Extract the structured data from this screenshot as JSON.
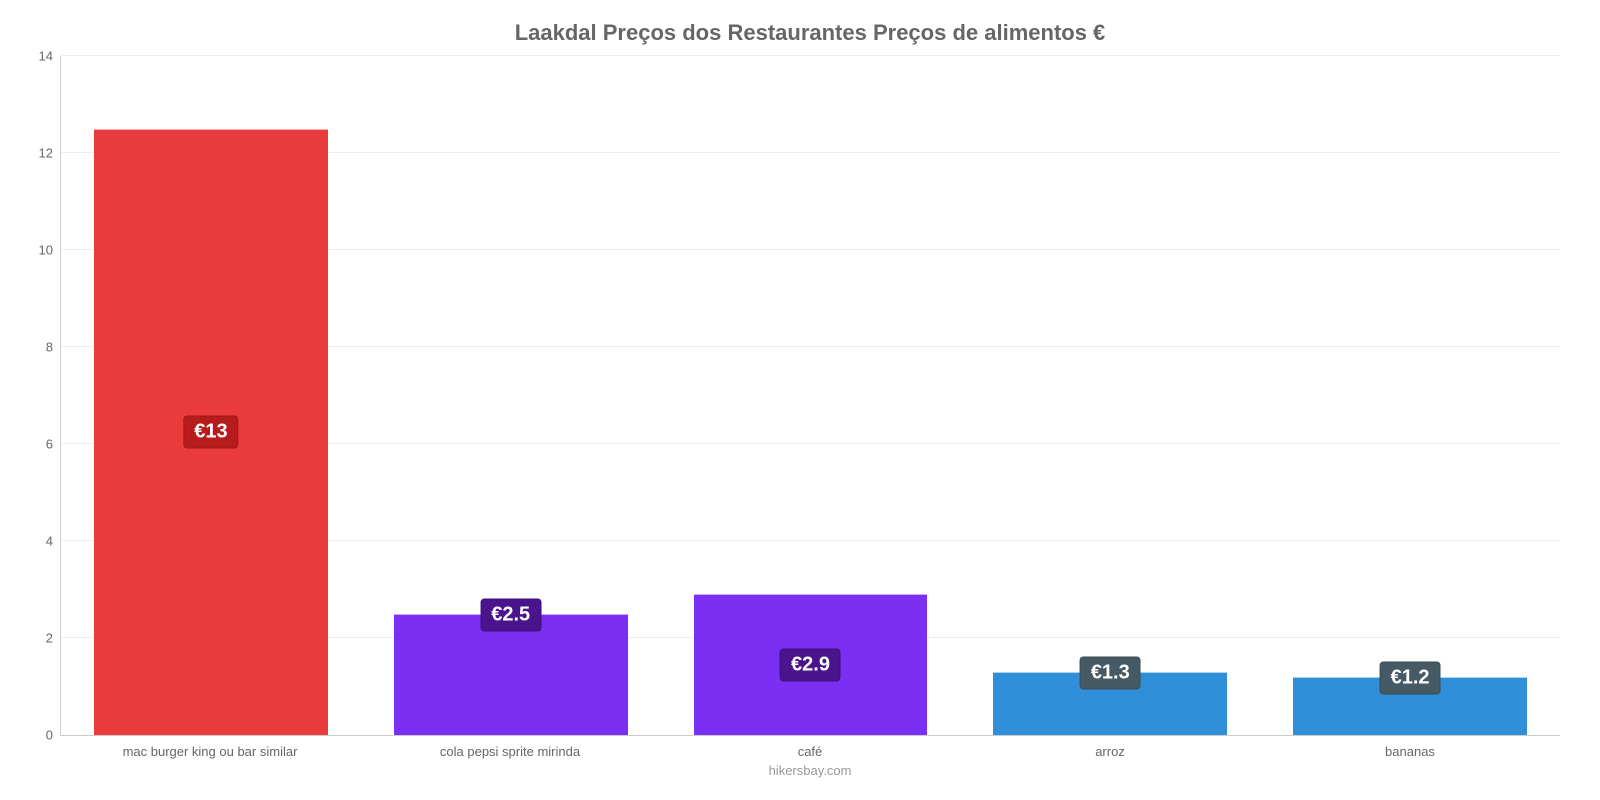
{
  "chart": {
    "type": "bar",
    "title": "Laakdal Preços dos Restaurantes Preços de alimentos €",
    "title_fontsize": 22,
    "title_color": "#666666",
    "attribution": "hikersbay.com",
    "background_color": "#ffffff",
    "grid_color": "#eeeeee",
    "axis_color": "#cccccc",
    "tick_label_color": "#666666",
    "tick_label_fontsize": 13,
    "ylim": [
      0,
      14
    ],
    "ytick_step": 2,
    "yticks": [
      0,
      2,
      4,
      6,
      8,
      10,
      12,
      14
    ],
    "bar_width_pct": 78,
    "value_label_fontsize": 20,
    "categories": [
      "mac burger king ou bar similar",
      "cola pepsi sprite mirinda",
      "café",
      "arroz",
      "bananas"
    ],
    "values": [
      12.5,
      2.5,
      2.9,
      1.3,
      1.2
    ],
    "value_labels": [
      "€13",
      "€2.5",
      "€2.9",
      "€1.3",
      "€1.2"
    ],
    "bar_colors": [
      "#e93b3b",
      "#7b2ff2",
      "#7b2ff2",
      "#2f8fd8",
      "#2f8fd8"
    ],
    "badge_colors": [
      "#b71c1c",
      "#4a148c",
      "#4a148c",
      "#455a64",
      "#455a64"
    ]
  }
}
